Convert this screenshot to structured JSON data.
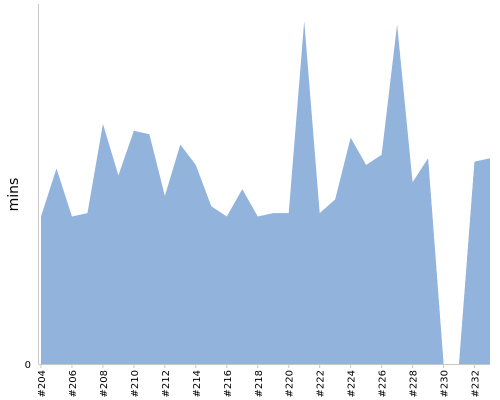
{
  "chart_data": {
    "type": "area",
    "title": "",
    "xlabel": "",
    "ylabel": "mins",
    "grid": false,
    "legend": "none",
    "ylim": [
      0,
      100
    ],
    "x": [
      "#204",
      "#205",
      "#206",
      "#207",
      "#208",
      "#209",
      "#210",
      "#211",
      "#212",
      "#213",
      "#214",
      "#215",
      "#216",
      "#217",
      "#218",
      "#219",
      "#220",
      "#221",
      "#222",
      "#223",
      "#224",
      "#225",
      "#226",
      "#227",
      "#228",
      "#229",
      "#230",
      "#231",
      "#232",
      "#233"
    ],
    "x_tick_labels": [
      "#204",
      "#206",
      "#208",
      "#210",
      "#212",
      "#214",
      "#216",
      "#218",
      "#220",
      "#222",
      "#224",
      "#226",
      "#228",
      "#230",
      "#232"
    ],
    "y_tick_labels": [
      "0"
    ],
    "series": [
      {
        "values": [
          43,
          57,
          43,
          44,
          70,
          55,
          68,
          67,
          49,
          64,
          58,
          46,
          43,
          51,
          43,
          44,
          44,
          100,
          44,
          48,
          66,
          58,
          61,
          99,
          53,
          60,
          0,
          0,
          59,
          60
        ],
        "color": "#91b3dc"
      }
    ],
    "missing_fill_color": "#c0c0c0"
  }
}
